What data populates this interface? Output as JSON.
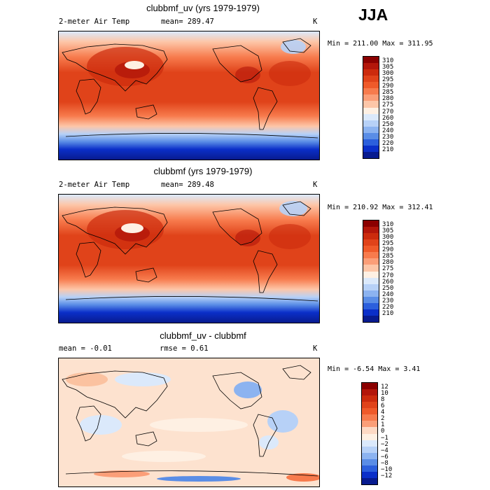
{
  "season": "JJA",
  "panels": [
    {
      "title": "clubbmf_uv (yrs 1979-1979)",
      "var_label": "2-meter Air Temp",
      "stat_text": "mean= 289.47",
      "units": "K",
      "minmax": "Min = 211.00 Max = 311.95",
      "levels": [
        "310",
        "305",
        "300",
        "295",
        "290",
        "285",
        "280",
        "275",
        "270",
        "260",
        "250",
        "240",
        "230",
        "220",
        "210"
      ],
      "colors": [
        "#8b0000",
        "#b3160a",
        "#cc2b0d",
        "#e0431a",
        "#ef5a2a",
        "#f77b4d",
        "#fb9e78",
        "#fdc6a8",
        "#fef0e3",
        "#dbe9fb",
        "#b7d1f7",
        "#8cb3f0",
        "#5a8de6",
        "#2c5fdc",
        "#0b2fc9",
        "#081b8f"
      ]
    },
    {
      "title": "clubbmf (yrs 1979-1979)",
      "var_label": "2-meter Air Temp",
      "stat_text": "mean= 289.48",
      "units": "K",
      "minmax": "Min = 210.92 Max = 312.41",
      "levels": [
        "310",
        "305",
        "300",
        "295",
        "290",
        "285",
        "280",
        "275",
        "270",
        "260",
        "250",
        "240",
        "230",
        "220",
        "210"
      ],
      "colors": [
        "#8b0000",
        "#b3160a",
        "#cc2b0d",
        "#e0431a",
        "#ef5a2a",
        "#f77b4d",
        "#fb9e78",
        "#fdc6a8",
        "#fef0e3",
        "#dbe9fb",
        "#b7d1f7",
        "#8cb3f0",
        "#5a8de6",
        "#2c5fdc",
        "#0b2fc9",
        "#081b8f"
      ]
    },
    {
      "title": "clubbmf_uv - clubbmf",
      "mean_text": "mean =  -0.01",
      "rmse_text": "rmse =   0.61",
      "units": "K",
      "minmax": "Min =  -6.54 Max =   3.41",
      "levels": [
        "12",
        "10",
        "8",
        "6",
        "4",
        "2",
        "1",
        "0",
        "−1",
        "−2",
        "−4",
        "−6",
        "−8",
        "−10",
        "−12"
      ],
      "colors": [
        "#8b0000",
        "#b3160a",
        "#cc2b0d",
        "#e0431a",
        "#ef5a2a",
        "#f77b4d",
        "#fb9e78",
        "#fdd9c4",
        "#fef0e3",
        "#dbe9fb",
        "#b7d1f7",
        "#8cb3f0",
        "#5a8de6",
        "#2c5fdc",
        "#0b2fc9",
        "#081b8f"
      ]
    }
  ]
}
